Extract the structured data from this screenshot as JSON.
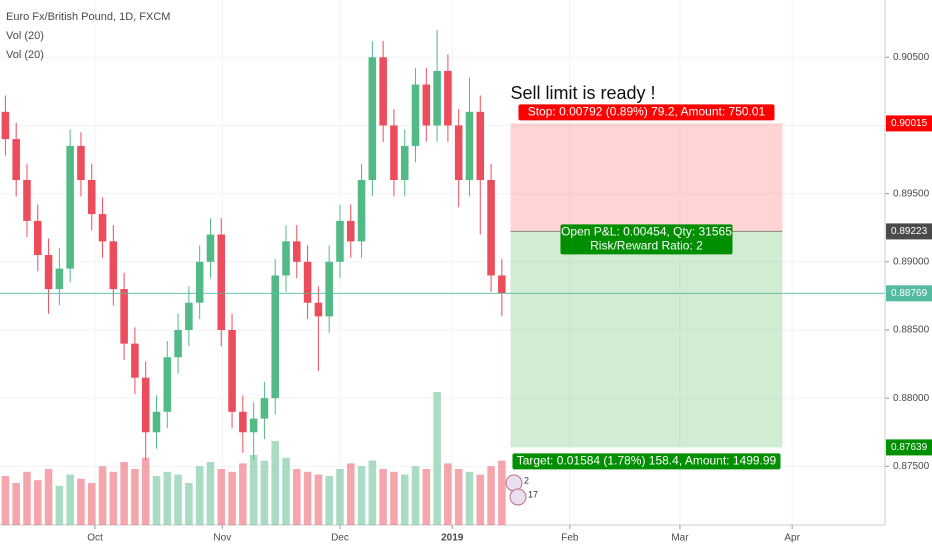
{
  "chart_data": {
    "type": "candlestick",
    "title": "Euro Fx/British Pound, 1D, FXCM",
    "indicators": [
      "Vol (20)",
      "Vol (20)"
    ],
    "xlim": [
      0,
      82
    ],
    "ylim": [
      0.8707,
      0.9092
    ],
    "xticks": [
      {
        "value": 8.8,
        "label": "Oct"
      },
      {
        "value": 20.6,
        "label": "Nov"
      },
      {
        "value": 31.5,
        "label": "Dec"
      },
      {
        "value": 41.9,
        "label": "2019"
      },
      {
        "value": 52.8,
        "label": "Feb"
      },
      {
        "value": 63,
        "label": "Mar"
      },
      {
        "value": 73.4,
        "label": "Apr"
      }
    ],
    "yticks": [
      {
        "value": 0.875,
        "label": "0.87500"
      },
      {
        "value": 0.88,
        "label": "0.88000"
      },
      {
        "value": 0.885,
        "label": "0.88500"
      },
      {
        "value": 0.89,
        "label": "0.89000"
      },
      {
        "value": 0.895,
        "label": "0.89500"
      },
      {
        "value": 0.9,
        "label": "0.90000"
      },
      {
        "value": 0.905,
        "label": "0.90500"
      }
    ],
    "up_color": "#53b987",
    "down_color": "#eb4d5c",
    "x": [
      0.5,
      1.5,
      2.5,
      3.5,
      4.5,
      5.5,
      6.5,
      7.5,
      8.5,
      9.5,
      10.5,
      11.5,
      12.5,
      13.5,
      14.5,
      15.5,
      16.5,
      17.5,
      18.5,
      19.5,
      20.5,
      21.5,
      22.5,
      23.5,
      24.5,
      25.5,
      26.5,
      27.5,
      28.5,
      29.5,
      30.5,
      31.5,
      32.5,
      33.5,
      34.5,
      35.5,
      36.5,
      37.5,
      38.5,
      39.5,
      40.5,
      41.5,
      42.5,
      43.5,
      44.5,
      45.5,
      46.5
    ],
    "open": [
      0.901,
      0.899,
      0.896,
      0.893,
      0.8905,
      0.888,
      0.8895,
      0.8985,
      0.896,
      0.8935,
      0.8915,
      0.888,
      0.884,
      0.8815,
      0.8775,
      0.879,
      0.883,
      0.885,
      0.887,
      0.89,
      0.892,
      0.885,
      0.879,
      0.8775,
      0.8785,
      0.88,
      0.889,
      0.8915,
      0.89,
      0.887,
      0.886,
      0.89,
      0.893,
      0.8915,
      0.896,
      0.905,
      0.9,
      0.896,
      0.8985,
      0.903,
      0.9,
      0.904,
      0.9,
      0.896,
      0.901,
      0.896,
      0.889
    ],
    "high": [
      0.9022,
      0.9002,
      0.8972,
      0.8942,
      0.8917,
      0.891,
      0.8997,
      0.8995,
      0.8972,
      0.8947,
      0.8927,
      0.8892,
      0.8852,
      0.8827,
      0.8802,
      0.8842,
      0.8862,
      0.8882,
      0.8912,
      0.8932,
      0.8932,
      0.8862,
      0.8802,
      0.8797,
      0.8812,
      0.8902,
      0.8927,
      0.8927,
      0.8912,
      0.8882,
      0.8912,
      0.8942,
      0.8942,
      0.8972,
      0.9062,
      0.9062,
      0.9012,
      0.8997,
      0.9042,
      0.9042,
      0.907,
      0.9052,
      0.9012,
      0.9035,
      0.9022,
      0.8972,
      0.8902
    ],
    "low": [
      0.8978,
      0.8948,
      0.8918,
      0.8893,
      0.8862,
      0.8868,
      0.8885,
      0.8948,
      0.8923,
      0.8903,
      0.8868,
      0.8828,
      0.8803,
      0.8755,
      0.8763,
      0.8778,
      0.8818,
      0.8838,
      0.8858,
      0.8888,
      0.8838,
      0.8778,
      0.876,
      0.8755,
      0.877,
      0.8788,
      0.8878,
      0.8888,
      0.8858,
      0.882,
      0.8848,
      0.8888,
      0.8903,
      0.8903,
      0.8948,
      0.8988,
      0.8948,
      0.8948,
      0.8973,
      0.8988,
      0.8988,
      0.8988,
      0.894,
      0.8948,
      0.892,
      0.8878,
      0.886
    ],
    "close": [
      0.899,
      0.896,
      0.893,
      0.8905,
      0.888,
      0.8895,
      0.8985,
      0.896,
      0.8935,
      0.8915,
      0.888,
      0.884,
      0.8815,
      0.8775,
      0.879,
      0.883,
      0.885,
      0.887,
      0.89,
      0.892,
      0.885,
      0.879,
      0.8775,
      0.8785,
      0.88,
      0.889,
      0.8915,
      0.89,
      0.887,
      0.886,
      0.89,
      0.893,
      0.8915,
      0.896,
      0.905,
      0.9,
      0.896,
      0.8985,
      0.903,
      0.9,
      0.904,
      0.9,
      0.896,
      0.901,
      0.896,
      0.889,
      0.88769
    ],
    "volume": [
      35,
      30,
      38,
      32,
      40,
      28,
      36,
      33,
      30,
      42,
      38,
      45,
      40,
      48,
      35,
      38,
      36,
      30,
      42,
      45,
      40,
      38,
      44,
      50,
      46,
      60,
      48,
      40,
      38,
      36,
      35,
      40,
      44,
      42,
      46,
      40,
      38,
      36,
      42,
      40,
      95,
      44,
      40,
      38,
      36,
      42,
      46
    ],
    "current_price": 0.88769,
    "position": {
      "x": [
        47.3,
        72.5
      ],
      "entry": 0.89223,
      "stop": 0.90015,
      "target": 0.87639,
      "stop_label": "Stop: 0.00792 (0.89%) 79.2, Amount: 750.01",
      "pnl_label": "Open P&L: 0.00454, Qty: 31565",
      "rr_label": "Risk/Reward Ratio: 2",
      "target_label": "Target: 0.01584 (1.78%) 158.4, Amount: 1499.99"
    },
    "annotation": {
      "text": "Sell limit is ready !",
      "x": 47.3,
      "y": 0.9023
    },
    "event_badges": [
      "2",
      "17"
    ]
  }
}
